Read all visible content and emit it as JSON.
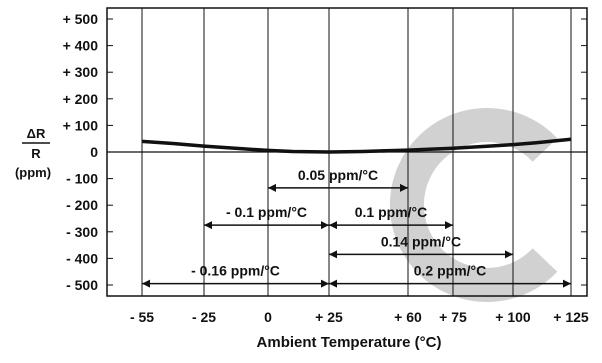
{
  "chart_data": {
    "type": "line",
    "xlabel": "Ambient Temperature (°C)",
    "ylabel_numerator": "ΔR",
    "ylabel_denominator": "R",
    "ylabel_unit": "(ppm)",
    "x_ticks": [
      -55,
      -25,
      0,
      25,
      60,
      75,
      100,
      125
    ],
    "x_tick_labels": [
      "- 55",
      "- 25",
      "0",
      "+ 25",
      "+ 60",
      "+ 75",
      "+ 100",
      "+ 125"
    ],
    "y_ticks": [
      500,
      400,
      300,
      200,
      100,
      0,
      -100,
      -200,
      -300,
      -400,
      -500
    ],
    "y_tick_labels": [
      "+ 500",
      "+ 400",
      "+ 300",
      "+ 200",
      "+ 100",
      "0",
      "- 100",
      "- 200",
      "- 300",
      "- 400",
      "- 500"
    ],
    "ylim": [
      -500,
      500
    ],
    "series": [
      {
        "x": [
          -55,
          -40,
          -25,
          -10,
          0,
          10,
          25,
          40,
          60,
          75,
          90,
          100,
          110,
          125
        ],
        "y": [
          40,
          32,
          22,
          12,
          6,
          2,
          0,
          2,
          7,
          14,
          22,
          28,
          35,
          48
        ]
      }
    ],
    "annotations": [
      {
        "label": "0.05 ppm/°C",
        "from": 0,
        "to": 60,
        "y": -135
      },
      {
        "label": "- 0.1 ppm/°C",
        "from": -25,
        "to": 25,
        "y": -275
      },
      {
        "label": "0.1 ppm/°C",
        "from": 25,
        "to": 75,
        "y": -275
      },
      {
        "label": "0.14 ppm/°C",
        "from": 25,
        "to": 100,
        "y": -385
      },
      {
        "label": "- 0.16 ppm/°C",
        "from": -55,
        "to": 25,
        "y": -495
      },
      {
        "label": "0.2 ppm/°C",
        "from": 25,
        "to": 125,
        "y": -495
      }
    ],
    "grid": "vertical-at-ticks",
    "colors": {
      "line": "#111111",
      "watermark": "#cccccc"
    }
  }
}
